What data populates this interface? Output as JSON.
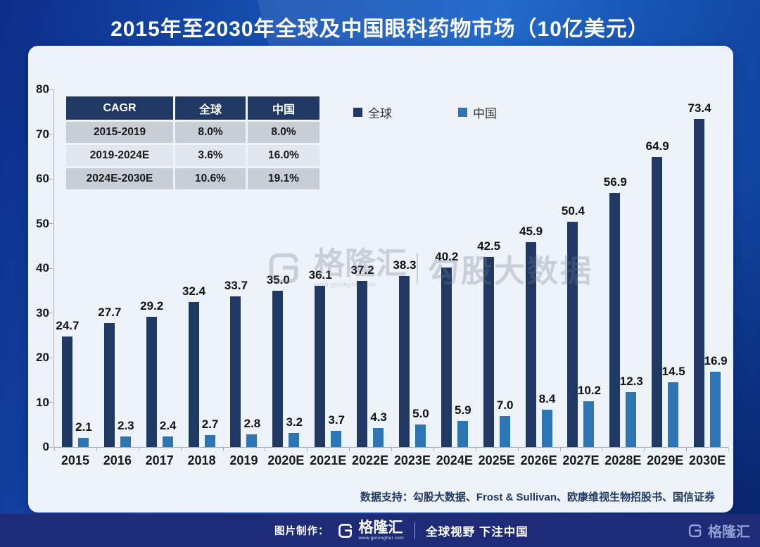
{
  "title": "2015年至2030年全球及中国眼科药物市场（10亿美元）",
  "cagr_table": {
    "headers": [
      "CAGR",
      "全球",
      "中国"
    ],
    "rows": [
      [
        "2015-2019",
        "8.0%",
        "8.0%"
      ],
      [
        "2019-2024E",
        "3.6%",
        "16.0%"
      ],
      [
        "2024E-2030E",
        "10.6%",
        "19.1%"
      ]
    ]
  },
  "legend": [
    {
      "label": "全球",
      "color": "#1f3864"
    },
    {
      "label": "中国",
      "color": "#2e75b6"
    }
  ],
  "chart_data": {
    "type": "bar",
    "title": "2015年至2030年全球及中国眼科药物市场（10亿美元）",
    "categories": [
      "2015",
      "2016",
      "2017",
      "2018",
      "2019",
      "2020E",
      "2021E",
      "2022E",
      "2023E",
      "2024E",
      "2025E",
      "2026E",
      "2027E",
      "2028E",
      "2029E",
      "2030E"
    ],
    "series": [
      {
        "name": "全球",
        "color": "#1f3864",
        "values": [
          24.7,
          27.7,
          29.2,
          32.4,
          33.7,
          35.0,
          36.1,
          37.2,
          38.3,
          40.2,
          42.5,
          45.9,
          50.4,
          56.9,
          64.9,
          73.4
        ]
      },
      {
        "name": "中国",
        "color": "#2e75b6",
        "values": [
          2.1,
          2.3,
          2.4,
          2.7,
          2.8,
          3.2,
          3.7,
          4.3,
          5.0,
          5.9,
          7.0,
          8.4,
          10.2,
          12.3,
          14.5,
          16.9
        ]
      }
    ],
    "xlabel": "",
    "ylabel": "",
    "ylim": [
      0,
      80
    ],
    "yticks": [
      0,
      10,
      20,
      30,
      40,
      50,
      60,
      70,
      80
    ],
    "grid": false,
    "legend_position": "top"
  },
  "watermark": {
    "brand": "格隆汇",
    "url": "www.gelonghui.com",
    "suffix": "勾股大数据"
  },
  "source_note": "数据支持：勾股大数据、Frost & Sullivan、欧康维视生物招股书、国信证券",
  "footer": {
    "credit_label": "图片制作：",
    "brand": "格隆汇",
    "brand_url": "www.gelonghui.com",
    "slogan": "全球视野 下注中国",
    "right_brand": "格隆汇"
  }
}
